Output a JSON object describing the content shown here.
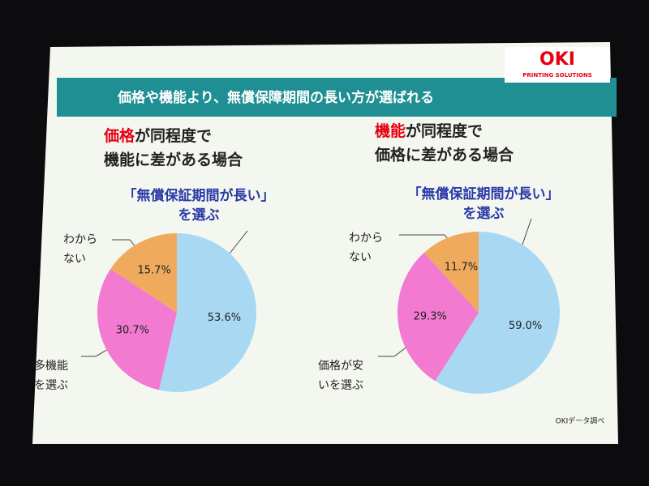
{
  "slide": {
    "title": "価格や機能より、無償保障期間の長い方が選ばれる",
    "logo": "OKI",
    "logo_sub": "PRINTING SOLUTIONS",
    "source": "OKIデータ調べ"
  },
  "chart_data": [
    {
      "type": "pie",
      "title_highlight": "価格",
      "title_rest": "が同程度で",
      "subtitle": "機能に差がある場合",
      "categories": [
        [
          "「無償保証期間が長い」",
          "を選ぶ"
        ],
        [
          "多機能",
          "を選ぶ"
        ],
        [
          "わから",
          "ない"
        ]
      ],
      "values": [
        53.6,
        30.7,
        15.7
      ],
      "value_labels": [
        "53.6%",
        "30.7%",
        "15.7%"
      ],
      "colors": [
        "#a9d9f2",
        "#f27ad0",
        "#f0aa5e"
      ]
    },
    {
      "type": "pie",
      "title_highlight": "機能",
      "title_rest": "が同程度で",
      "subtitle": "価格に差がある場合",
      "categories": [
        [
          "「無償保証期間が長い」",
          "を選ぶ"
        ],
        [
          "価格が安",
          "いを選ぶ"
        ],
        [
          "わから",
          "ない"
        ]
      ],
      "values": [
        59.0,
        29.3,
        11.7
      ],
      "value_labels": [
        "59.0%",
        "29.3%",
        "11.7%"
      ],
      "colors": [
        "#a9d9f2",
        "#f27ad0",
        "#f0aa5e"
      ]
    }
  ]
}
